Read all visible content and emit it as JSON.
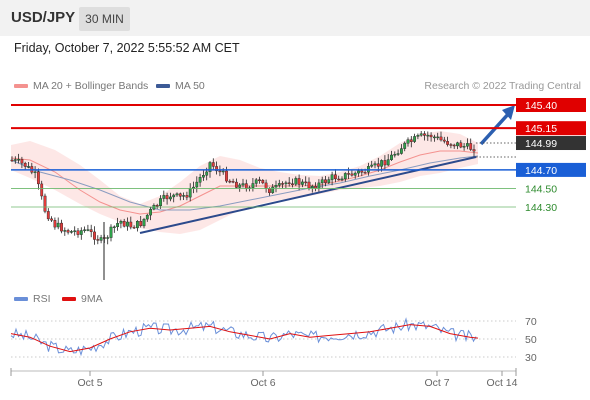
{
  "header": {
    "symbol": "USD/JPY",
    "timeframe": "30 MIN"
  },
  "datetime": "Friday, October 7, 2022 5:55:52 AM CET",
  "legend": {
    "ma20_label": "MA 20 + Bollinger Bands",
    "ma50_label": "MA 50",
    "ma20_color": "#f4928f",
    "ma50_color": "#3c5a96",
    "copyright": "Research © 2022 Trading Central"
  },
  "rsi_legend": {
    "rsi_label": "RSI",
    "ma_label": "9MA",
    "rsi_color": "#6a8fd8",
    "ma_color": "#e01010"
  },
  "chart_data": {
    "type": "candlestick",
    "x_ticks": [
      "Oct 5",
      "Oct 6",
      "Oct 7",
      "Oct 14"
    ],
    "levels": [
      {
        "label": "145.40",
        "value": 145.4,
        "kind": "resistance",
        "color": "#e00000"
      },
      {
        "label": "145.15",
        "value": 145.15,
        "kind": "resistance",
        "color": "#e00000"
      },
      {
        "label": "144.99",
        "value": 144.99,
        "kind": "last-price",
        "color": "#333333"
      },
      {
        "label": "144.70",
        "value": 144.7,
        "kind": "pivot",
        "color": "#1a5fd6"
      },
      {
        "label": "144.50",
        "value": 144.5,
        "kind": "support",
        "color": "#2e8b2e"
      },
      {
        "label": "144.30",
        "value": 144.3,
        "kind": "support",
        "color": "#2e8b2e"
      }
    ],
    "rsi_ticks": [
      "70",
      "50",
      "30"
    ],
    "rsi_range": [
      0,
      100
    ],
    "price_range": [
      143.4,
      145.6
    ]
  }
}
